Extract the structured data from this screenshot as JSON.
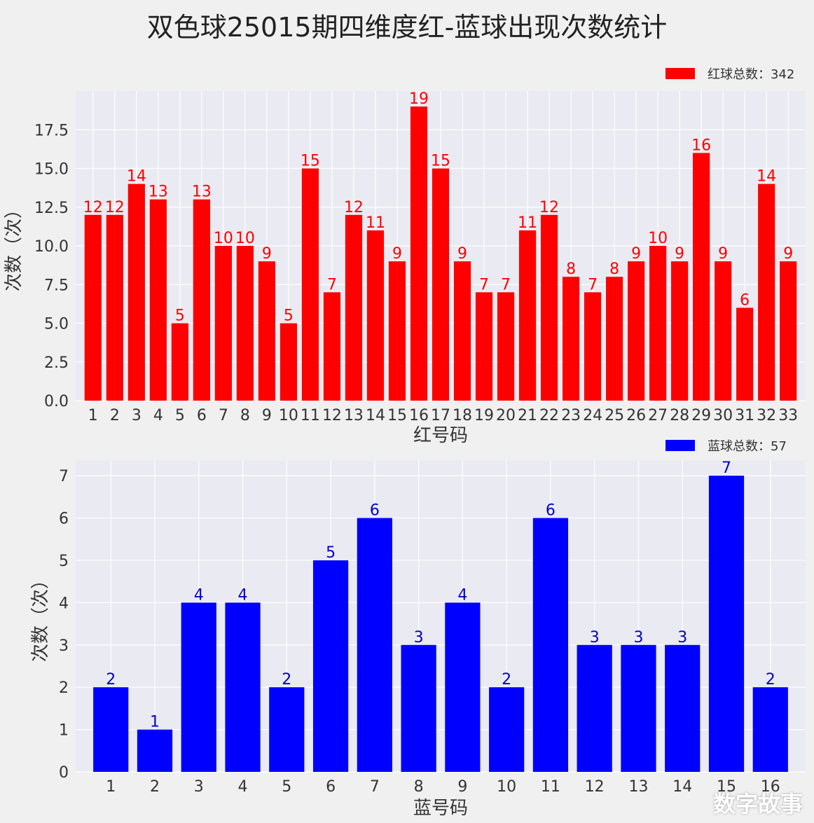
{
  "title": "双色球25015期四维度红-蓝球出现次数统计",
  "watermark": "数字故事",
  "chart_data": [
    {
      "type": "bar",
      "categories": [
        "1",
        "2",
        "3",
        "4",
        "5",
        "6",
        "7",
        "8",
        "9",
        "10",
        "11",
        "12",
        "13",
        "14",
        "15",
        "16",
        "17",
        "18",
        "19",
        "20",
        "21",
        "22",
        "23",
        "24",
        "25",
        "26",
        "27",
        "28",
        "29",
        "30",
        "31",
        "32",
        "33"
      ],
      "series": [
        {
          "name": "红球总数：342",
          "values": [
            12,
            12,
            14,
            13,
            5,
            13,
            10,
            10,
            9,
            5,
            15,
            7,
            12,
            11,
            9,
            19,
            15,
            9,
            7,
            7,
            11,
            12,
            8,
            7,
            8,
            9,
            10,
            9,
            16,
            9,
            6,
            14,
            9
          ]
        }
      ],
      "xlabel": "红号码",
      "ylabel": "次数（次）",
      "ylim": [
        0,
        20
      ],
      "yticks": [
        "0.0",
        "2.5",
        "5.0",
        "7.5",
        "10.0",
        "12.5",
        "15.0",
        "17.5"
      ],
      "bar_color": "#ff0000",
      "label_color": "#ff0000",
      "grid": true,
      "legend_position": "top-right"
    },
    {
      "type": "bar",
      "categories": [
        "1",
        "2",
        "3",
        "4",
        "5",
        "6",
        "7",
        "8",
        "9",
        "10",
        "11",
        "12",
        "13",
        "14",
        "15",
        "16"
      ],
      "series": [
        {
          "name": "蓝球总数：57",
          "values": [
            2,
            1,
            4,
            4,
            2,
            5,
            6,
            3,
            4,
            2,
            6,
            3,
            3,
            3,
            7,
            2
          ]
        }
      ],
      "xlabel": "蓝号码",
      "ylabel": "次数（次）",
      "ylim": [
        0,
        7.35
      ],
      "yticks": [
        "0",
        "1",
        "2",
        "3",
        "4",
        "5",
        "6",
        "7"
      ],
      "bar_color": "#0000ff",
      "label_color": "#0000cc",
      "grid": true,
      "legend_position": "top-right"
    }
  ]
}
